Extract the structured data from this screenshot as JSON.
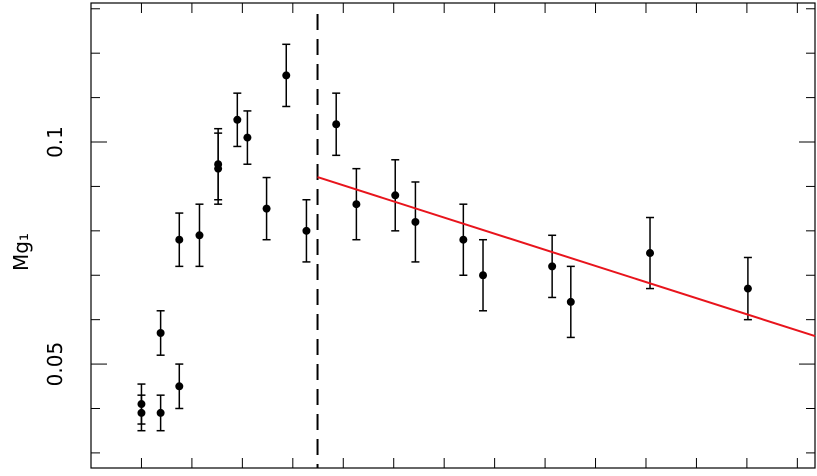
{
  "chart_data": {
    "type": "scatter",
    "ylabel": "Mg₁",
    "x": [
      0,
      0,
      0.38,
      0.38,
      0.75,
      0.75,
      1.15,
      1.52,
      1.52,
      1.9,
      2.1,
      2.48,
      2.87,
      3.27,
      3.86,
      4.26,
      5.03,
      5.43,
      6.38,
      6.77,
      8.14,
      8.51,
      10.08,
      12.02
    ],
    "series": [
      {
        "color": "#000000",
        "values": [
          0.041,
          0.039,
          0.039,
          0.057,
          0.045,
          0.078,
          0.079,
          0.095,
          0.094,
          0.105,
          0.101,
          0.085,
          0.115,
          0.08,
          0.104,
          0.086,
          0.088,
          0.082,
          0.078,
          0.07,
          0.072,
          0.064,
          0.075,
          0.067
        ],
        "errors": [
          0.0045,
          0.004,
          0.004,
          0.005,
          0.005,
          0.006,
          0.007,
          0.008,
          0.008,
          0.006,
          0.006,
          0.007,
          0.007,
          0.007,
          0.007,
          0.008,
          0.008,
          0.009,
          0.008,
          0.008,
          0.007,
          0.008,
          0.008,
          0.007
        ]
      }
    ],
    "fit": {
      "x": [
        3.49,
        13.35
      ],
      "y": [
        0.0921,
        0.0563
      ],
      "color": "#e8141c"
    },
    "vline": 3.49,
    "xlim": [
      -1,
      13.35
    ],
    "xticks": [
      -1,
      0,
      1,
      2,
      3,
      4,
      5,
      6,
      7,
      8,
      9,
      10,
      11,
      12,
      13
    ],
    "ylim": [
      0.0266,
      0.1313
    ],
    "yticks": [
      0.05,
      0.1
    ],
    "yminor_ticks": [
      0.03,
      0.04,
      0.06,
      0.07,
      0.08,
      0.09,
      0.11,
      0.12,
      0.13
    ]
  }
}
